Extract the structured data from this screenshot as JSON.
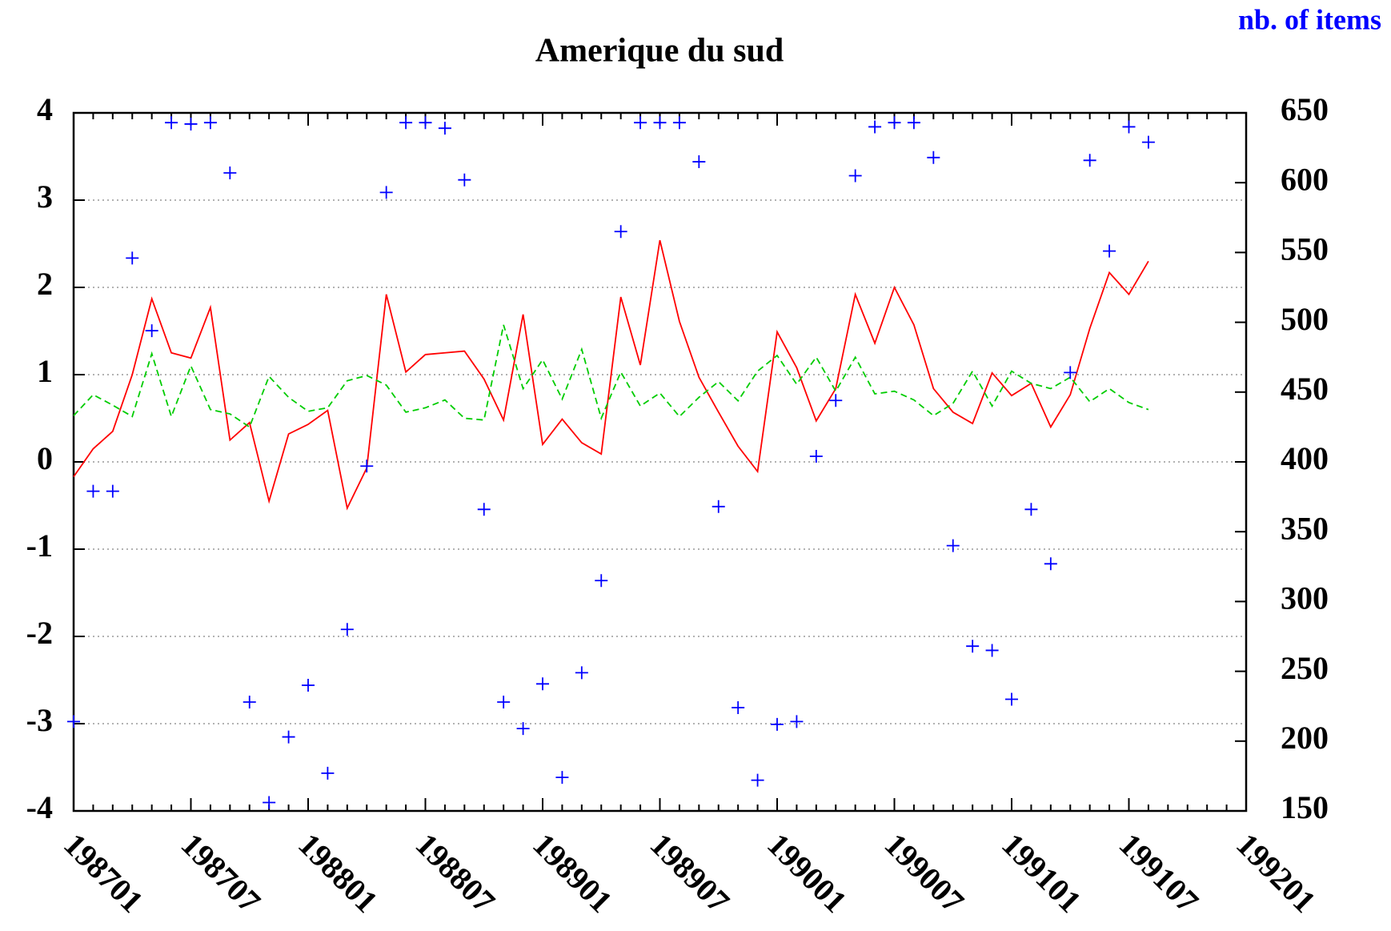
{
  "chart_data": {
    "type": "line",
    "title": "Amerique du sud",
    "y2label": "nb. of items",
    "categories": [
      "198701",
      null,
      null,
      null,
      null,
      null,
      "198707",
      null,
      null,
      null,
      null,
      null,
      "198801",
      null,
      null,
      null,
      null,
      null,
      "198807",
      null,
      null,
      null,
      null,
      null,
      "198901",
      null,
      null,
      null,
      null,
      null,
      "198907",
      null,
      null,
      null,
      null,
      null,
      "199001",
      null,
      null,
      null,
      null,
      null,
      "199007",
      null,
      null,
      null,
      null,
      null,
      "199101",
      null,
      null,
      null,
      null,
      null,
      "199107",
      null,
      null,
      null,
      null,
      null,
      "199201"
    ],
    "ylim": [
      -4,
      4
    ],
    "yticks": [
      -4,
      -3,
      -2,
      -1,
      0,
      1,
      2,
      3,
      4
    ],
    "y2lim": [
      150,
      650
    ],
    "y2ticks": [
      150,
      200,
      250,
      300,
      350,
      400,
      450,
      500,
      550,
      600,
      650
    ],
    "grid": true,
    "series": [
      {
        "color": "#ff0000",
        "style": "solid",
        "values": [
          -0.17,
          0.15,
          0.35,
          1.0,
          1.87,
          1.25,
          1.19,
          1.77,
          0.25,
          0.45,
          -0.45,
          0.32,
          0.43,
          0.59,
          -0.53,
          -0.07,
          1.92,
          1.03,
          1.23,
          1.25,
          1.27,
          0.95,
          0.48,
          1.69,
          0.2,
          0.49,
          0.22,
          0.09,
          1.89,
          1.11,
          2.54,
          1.61,
          0.97,
          0.57,
          0.18,
          -0.11,
          1.49,
          1.08,
          0.47,
          0.84,
          1.92,
          1.36,
          2.0,
          1.57,
          0.84,
          0.57,
          0.44,
          1.02,
          0.76,
          0.9,
          0.4,
          0.77,
          1.53,
          2.17,
          1.92,
          2.3,
          null,
          null,
          null,
          null,
          null
        ]
      },
      {
        "color": "#00cc00",
        "style": "dashed",
        "values": [
          0.53,
          0.77,
          0.65,
          0.52,
          1.24,
          0.52,
          1.1,
          0.6,
          0.55,
          0.4,
          0.98,
          0.74,
          0.58,
          0.62,
          0.93,
          0.99,
          0.88,
          0.57,
          0.62,
          0.71,
          0.5,
          0.48,
          1.57,
          0.84,
          1.17,
          0.72,
          1.29,
          0.5,
          1.03,
          0.64,
          0.79,
          0.52,
          0.74,
          0.92,
          0.7,
          1.04,
          1.22,
          0.89,
          1.2,
          0.81,
          1.2,
          0.78,
          0.81,
          0.71,
          0.53,
          0.67,
          1.04,
          0.64,
          1.04,
          0.9,
          0.84,
          0.97,
          0.69,
          0.84,
          0.68,
          0.6,
          null,
          null,
          null,
          null,
          null
        ]
      },
      {
        "color": "#0000ff",
        "style": "points",
        "axis": "y2",
        "values": [
          214,
          379,
          379,
          546,
          494,
          643,
          642,
          643,
          607,
          228,
          156,
          203,
          240,
          177,
          280,
          397,
          593,
          643,
          643,
          639,
          602,
          366,
          228,
          209,
          241,
          174,
          249,
          315,
          565,
          643,
          643,
          643,
          615,
          368,
          224,
          172,
          212,
          214,
          404,
          444,
          605,
          640,
          643,
          643,
          618,
          340,
          268,
          265,
          230,
          366,
          327,
          464,
          616,
          551,
          640,
          629,
          null,
          null,
          null,
          null,
          null
        ]
      }
    ]
  }
}
